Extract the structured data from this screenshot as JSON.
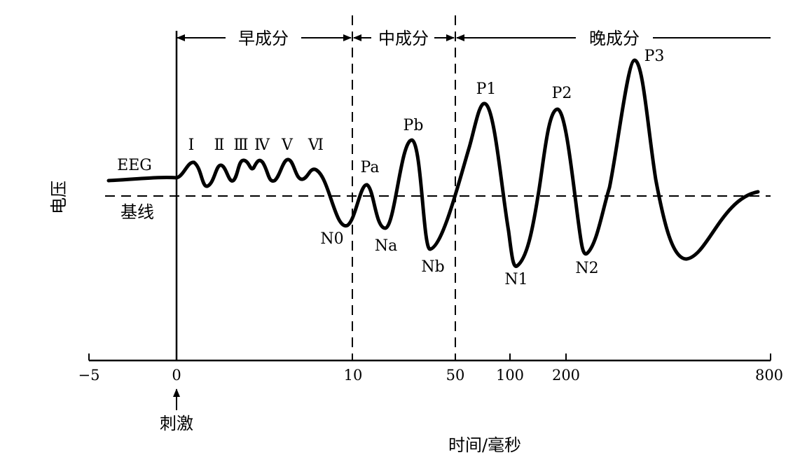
{
  "figure": {
    "ylabel": "电压",
    "xlabel": "时间/毫秒",
    "baseline_label": "基线",
    "eeg_label": "EEG",
    "stimulus_label": "刺激",
    "x_ticks": [
      "−5",
      "0",
      "10",
      "50",
      "100",
      "200",
      "800"
    ],
    "sections": {
      "early": "早成分",
      "middle": "中成分",
      "late": "晚成分"
    },
    "waves": {
      "I": "Ⅰ",
      "II": "Ⅱ",
      "III": "Ⅲ",
      "IV": "Ⅳ",
      "V": "Ⅴ",
      "VI": "Ⅵ",
      "N0": "N0",
      "Pa": "Pa",
      "Na": "Na",
      "Pb": "Pb",
      "Nb": "Nb",
      "P1": "P1",
      "N1": "N1",
      "P2": "P2",
      "N2": "N2",
      "P3": "P3"
    }
  }
}
